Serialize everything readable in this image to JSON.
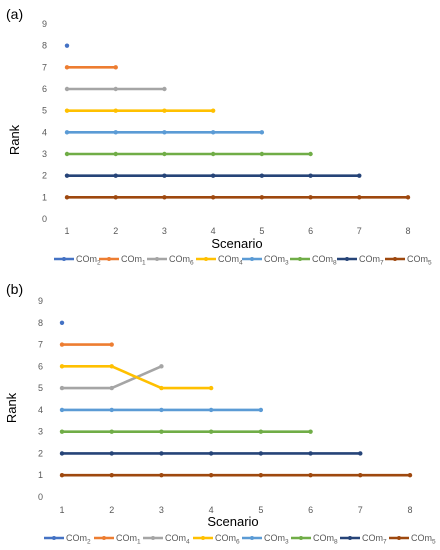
{
  "colors": {
    "COm2": "#4472C4",
    "COm1": "#ED7D31",
    "COm6": "#A5A5A5",
    "COm4": "#FFC000",
    "COm3": "#5B9BD5",
    "COm8": "#70AD47",
    "COm7": "#264478",
    "COm5": "#9E480E"
  },
  "chart_data": [
    {
      "type": "line",
      "panel_label": "(a)",
      "xlabel": "Scenario",
      "ylabel": "Rank",
      "x_ticks": [
        1,
        2,
        3,
        4,
        5,
        6,
        7,
        8
      ],
      "y_ticks": [
        0,
        1,
        2,
        3,
        4,
        5,
        6,
        7,
        8,
        9
      ],
      "ylim": [
        0,
        9
      ],
      "xlim": [
        1,
        8
      ],
      "grid": false,
      "legend_position": "bottom",
      "series": [
        {
          "name": "COm2",
          "base": "COm",
          "sub": "2",
          "color_key": "COm2",
          "x": [
            1
          ],
          "values": [
            8
          ]
        },
        {
          "name": "COm1",
          "base": "COm",
          "sub": "1",
          "color_key": "COm1",
          "x": [
            1,
            2
          ],
          "values": [
            7,
            7
          ]
        },
        {
          "name": "COm6",
          "base": "COm",
          "sub": "6",
          "color_key": "COm6",
          "x": [
            1,
            2,
            3
          ],
          "values": [
            6,
            6,
            6
          ]
        },
        {
          "name": "COm4",
          "base": "COm",
          "sub": "4",
          "color_key": "COm4",
          "x": [
            1,
            2,
            3,
            4
          ],
          "values": [
            5,
            5,
            5,
            5
          ]
        },
        {
          "name": "COm3",
          "base": "COm",
          "sub": "3",
          "color_key": "COm3",
          "x": [
            1,
            2,
            3,
            4,
            5
          ],
          "values": [
            4,
            4,
            4,
            4,
            4
          ]
        },
        {
          "name": "COm8",
          "base": "COm",
          "sub": "8",
          "color_key": "COm8",
          "x": [
            1,
            2,
            3,
            4,
            5,
            6
          ],
          "values": [
            3,
            3,
            3,
            3,
            3,
            3
          ]
        },
        {
          "name": "COm7",
          "base": "COm",
          "sub": "7",
          "color_key": "COm7",
          "x": [
            1,
            2,
            3,
            4,
            5,
            6,
            7
          ],
          "values": [
            2,
            2,
            2,
            2,
            2,
            2,
            2
          ]
        },
        {
          "name": "COm5",
          "base": "COm",
          "sub": "5",
          "color_key": "COm5",
          "x": [
            1,
            2,
            3,
            4,
            5,
            6,
            7,
            8
          ],
          "values": [
            1,
            1,
            1,
            1,
            1,
            1,
            1,
            1
          ]
        }
      ]
    },
    {
      "type": "line",
      "panel_label": "(b)",
      "xlabel": "Scenario",
      "ylabel": "Rank",
      "x_ticks": [
        1,
        2,
        3,
        4,
        5,
        6,
        7,
        8
      ],
      "y_ticks": [
        0,
        1,
        2,
        3,
        4,
        5,
        6,
        7,
        8,
        9
      ],
      "ylim": [
        0,
        9
      ],
      "xlim": [
        1,
        8
      ],
      "grid": false,
      "legend_position": "bottom",
      "series": [
        {
          "name": "COm2",
          "base": "COm",
          "sub": "2",
          "color_key": "COm2",
          "x": [
            1
          ],
          "values": [
            8
          ]
        },
        {
          "name": "COm1",
          "base": "COm",
          "sub": "1",
          "color_key": "COm1",
          "x": [
            1,
            2
          ],
          "values": [
            7,
            7
          ]
        },
        {
          "name": "COm4",
          "base": "COm",
          "sub": "4",
          "color_key": "COm6",
          "x": [
            1,
            2,
            3
          ],
          "values": [
            5,
            5,
            6
          ]
        },
        {
          "name": "COm6",
          "base": "COm",
          "sub": "6",
          "color_key": "COm4",
          "x": [
            1,
            2,
            3,
            4
          ],
          "values": [
            6,
            6,
            5,
            5
          ]
        },
        {
          "name": "COm3",
          "base": "COm",
          "sub": "3",
          "color_key": "COm3",
          "x": [
            1,
            2,
            3,
            4,
            5
          ],
          "values": [
            4,
            4,
            4,
            4,
            4
          ]
        },
        {
          "name": "COm8",
          "base": "COm",
          "sub": "8",
          "color_key": "COm8",
          "x": [
            1,
            2,
            3,
            4,
            5,
            6
          ],
          "values": [
            3,
            3,
            3,
            3,
            3,
            3
          ]
        },
        {
          "name": "COm7",
          "base": "COm",
          "sub": "7",
          "color_key": "COm7",
          "x": [
            1,
            2,
            3,
            4,
            5,
            6,
            7
          ],
          "values": [
            2,
            2,
            2,
            2,
            2,
            2,
            2
          ]
        },
        {
          "name": "COm5",
          "base": "COm",
          "sub": "5",
          "color_key": "COm5",
          "x": [
            1,
            2,
            3,
            4,
            5,
            6,
            7,
            8
          ],
          "values": [
            1,
            1,
            1,
            1,
            1,
            1,
            1,
            1
          ]
        }
      ]
    }
  ]
}
